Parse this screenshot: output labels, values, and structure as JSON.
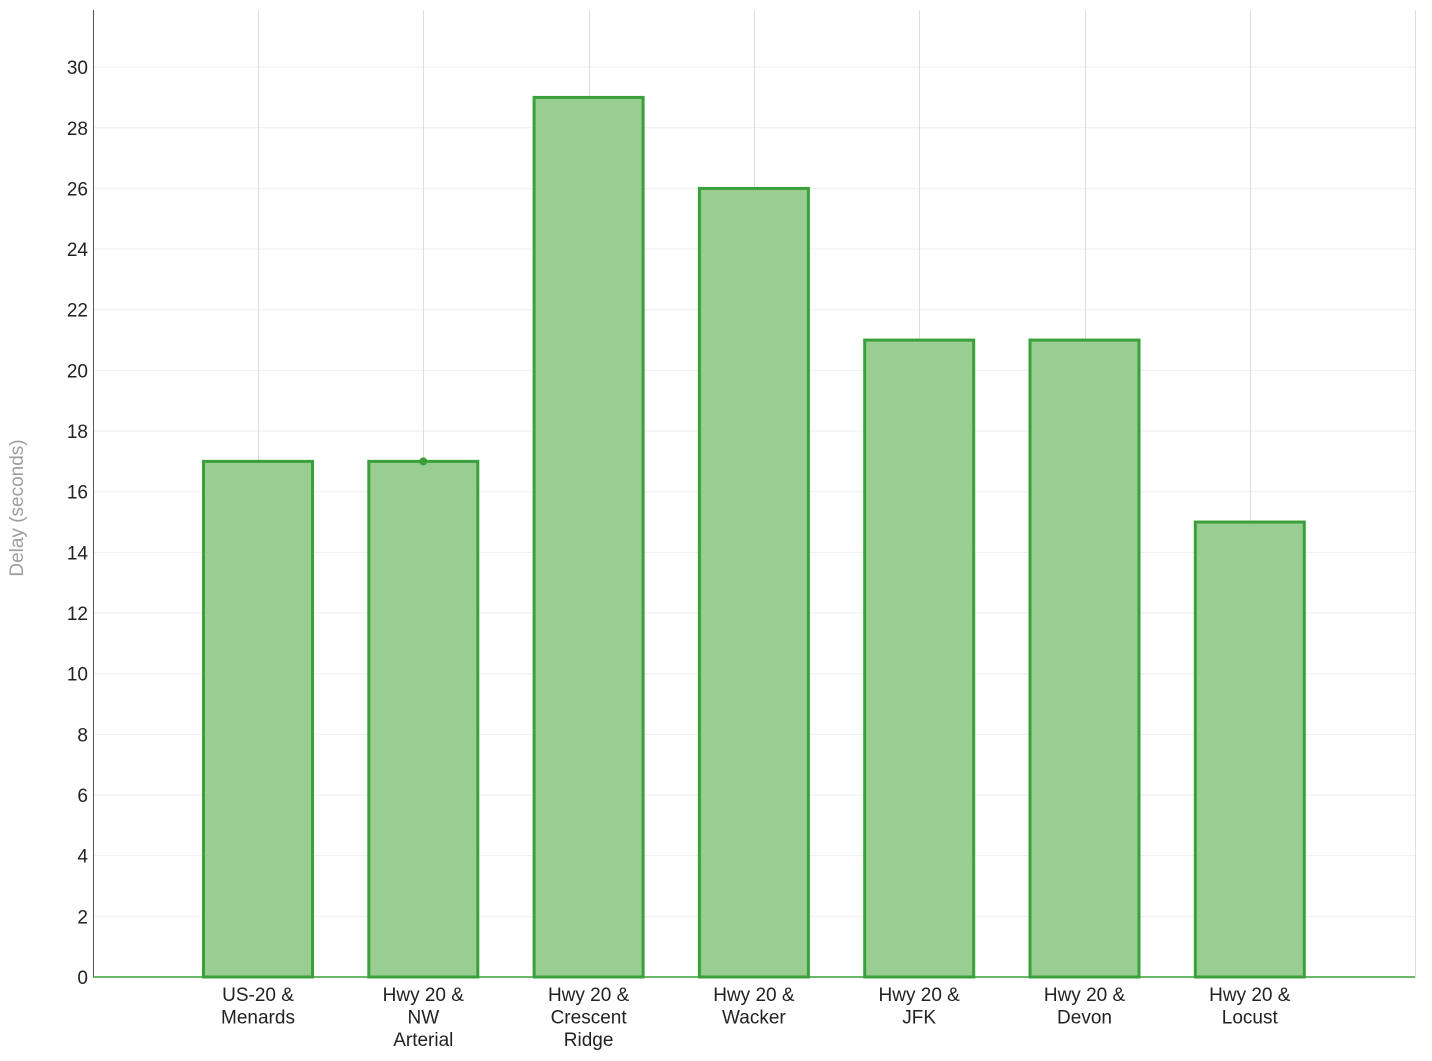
{
  "chart_data": {
    "type": "bar",
    "title": "",
    "xlabel": "",
    "ylabel": "Delay (seconds)",
    "ylim": [
      0,
      31.8
    ],
    "yticks": [
      0,
      2,
      4,
      6,
      8,
      10,
      12,
      14,
      16,
      18,
      20,
      22,
      24,
      26,
      28,
      30
    ],
    "grid": true,
    "legend": "none",
    "categories": [
      [
        "US-20 &",
        "Menards"
      ],
      [
        "Hwy 20 &",
        "NW",
        "Arterial"
      ],
      [
        "Hwy 20 &",
        "Crescent",
        "Ridge"
      ],
      [
        "Hwy 20 &",
        "Wacker"
      ],
      [
        "Hwy 20 &",
        "JFK"
      ],
      [
        "Hwy 20 &",
        "Devon"
      ],
      [
        "Hwy 20 &",
        "Locust"
      ]
    ],
    "values": [
      17,
      17,
      29,
      26,
      21,
      21,
      15
    ],
    "colors": {
      "bar_fill": "#99cd92",
      "bar_stroke": "#3aa03a",
      "axis_line": "#3aa03a",
      "grid": "#eeeeee",
      "vgrid": "#dddddd"
    }
  }
}
